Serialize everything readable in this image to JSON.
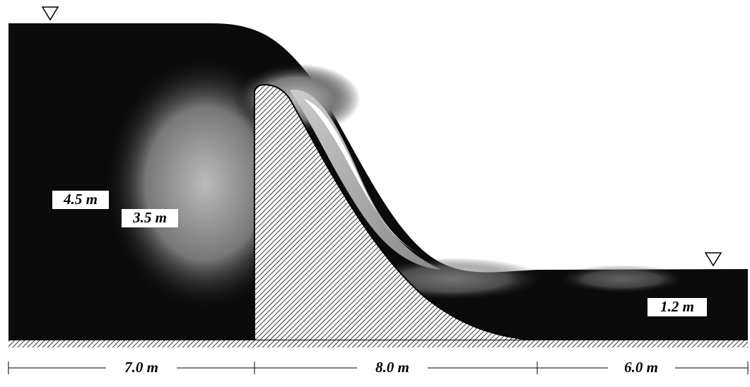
{
  "labels": {
    "upstream_depth": "4.5 m",
    "weir_height": "3.5 m",
    "downstream_depth": "1.2 m"
  },
  "dimensions": [
    "7.0 m",
    "8.0 m",
    "6.0 m"
  ]
}
